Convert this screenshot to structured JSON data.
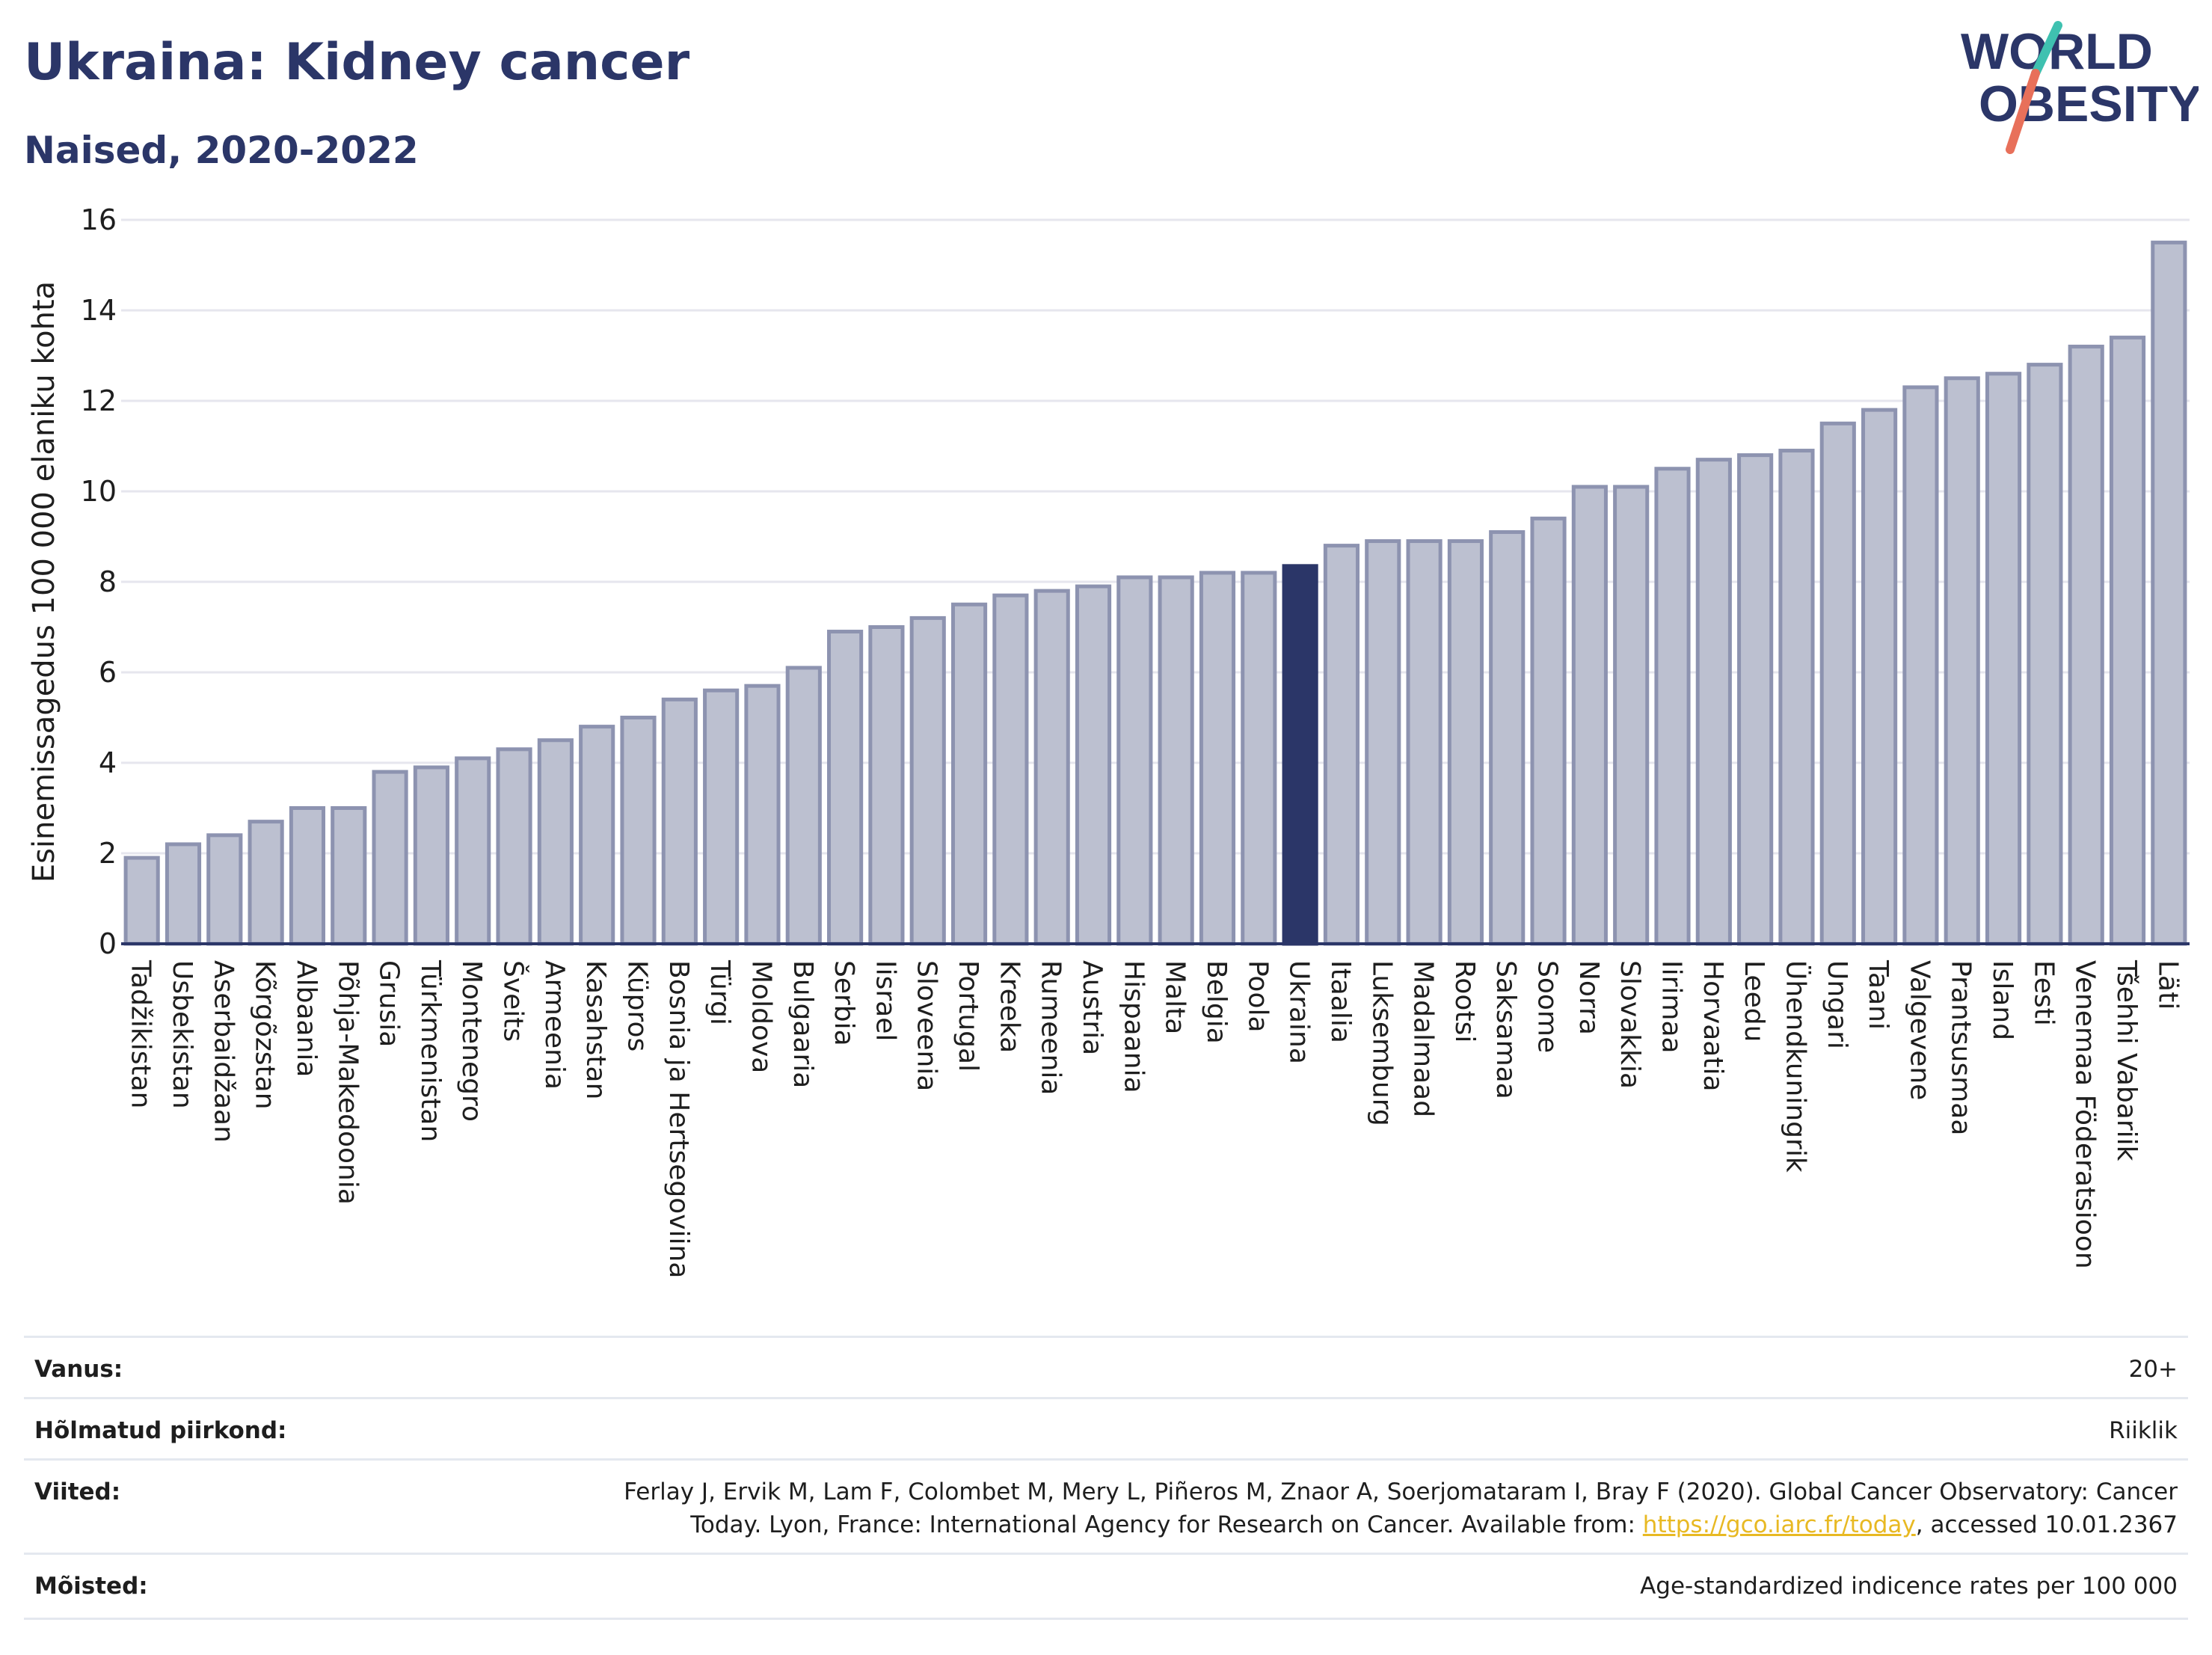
{
  "header": {
    "title": "Ukraina: Kidney cancer",
    "subtitle": "Naised, 2020-2022"
  },
  "logo": {
    "line1": "WORLD",
    "line2": "OBESITY",
    "accent_teal": "#3fc1b0",
    "accent_coral": "#e8705a",
    "text_color": "#2b3668"
  },
  "colors": {
    "bar_fill": "#bcc0d0",
    "bar_stroke": "#8d93b0",
    "highlight": "#2b3668",
    "grid": "#e6e6ee"
  },
  "chart_data": {
    "type": "bar",
    "ylabel": "Esinemissagedus 100 000 elaniku kohta",
    "ylim": [
      0,
      16
    ],
    "yticks": [
      0,
      2,
      4,
      6,
      8,
      10,
      12,
      14,
      16
    ],
    "grid": true,
    "highlight": "Ukraina",
    "categories": [
      "Tadžikistan",
      "Usbekistan",
      "Aserbaidžaan",
      "Kõrgõzstan",
      "Albaania",
      "Põhja-Makedoonia",
      "Grusia",
      "Türkmenistan",
      "Montenegro",
      "Šveits",
      "Armeenia",
      "Kasahstan",
      "Küpros",
      "Bosnia ja Hertsegoviina",
      "Türgi",
      "Moldova",
      "Bulgaaria",
      "Serbia",
      "Iisrael",
      "Sloveenia",
      "Portugal",
      "Kreeka",
      "Rumeenia",
      "Austria",
      "Hispaania",
      "Malta",
      "Belgia",
      "Poola",
      "Ukraina",
      "Itaalia",
      "Luksemburg",
      "Madalmaad",
      "Rootsi",
      "Saksamaa",
      "Soome",
      "Norra",
      "Slovakkia",
      "Iirimaa",
      "Horvaatia",
      "Leedu",
      "Ühendkuningrik",
      "Ungari",
      "Taani",
      "Valgevene",
      "Prantsusmaa",
      "Island",
      "Eesti",
      "Venemaa Föderatsioon",
      "Tšehhi Vabariik",
      "Läti"
    ],
    "values": [
      1.9,
      2.2,
      2.4,
      2.7,
      3.0,
      3.0,
      3.8,
      3.9,
      4.1,
      4.3,
      4.5,
      4.8,
      5.0,
      5.4,
      5.6,
      5.7,
      6.1,
      6.9,
      7.0,
      7.2,
      7.5,
      7.7,
      7.8,
      7.9,
      8.1,
      8.1,
      8.2,
      8.2,
      8.35,
      8.8,
      8.9,
      8.9,
      8.9,
      9.1,
      9.4,
      10.1,
      10.1,
      10.5,
      10.7,
      10.8,
      10.9,
      11.5,
      11.8,
      12.3,
      12.5,
      12.6,
      12.8,
      13.2,
      13.4,
      15.5
    ]
  },
  "meta": {
    "rows": [
      {
        "label": "Vanus:",
        "value": "20+"
      },
      {
        "label": "Hõlmatud piirkond:",
        "value": "Riiklik"
      },
      {
        "label": "Viited:",
        "value_line1": "Ferlay J, Ervik M, Lam F, Colombet M, Mery L, Piñeros M, Znaor A, Soerjomataram I, Bray F (2020). Global Cancer Observatory: Cancer",
        "value_line2_pre": "Today. Lyon, France: International Agency for Research on Cancer. Available from: ",
        "link": "https://gco.iarc.fr/today",
        "value_line2_post": ", accessed 10.01.2367"
      },
      {
        "label": "Mõisted:",
        "value": "Age-standardized indicence rates per 100 000"
      }
    ]
  }
}
